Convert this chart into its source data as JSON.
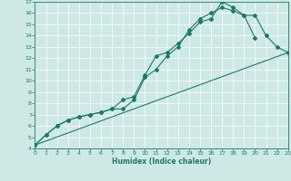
{
  "xlabel": "Humidex (Indice chaleur)",
  "bg_color": "#cde8e5",
  "line_color": "#1a7a6a",
  "grid_color": "#ffffff",
  "ylim": [
    4,
    17
  ],
  "xlim": [
    0,
    23
  ],
  "yticks": [
    4,
    5,
    6,
    7,
    8,
    9,
    10,
    11,
    12,
    13,
    14,
    15,
    16,
    17
  ],
  "xticks": [
    0,
    1,
    2,
    3,
    4,
    5,
    6,
    7,
    8,
    9,
    10,
    11,
    12,
    13,
    14,
    15,
    16,
    17,
    18,
    19,
    20,
    21,
    22,
    23
  ],
  "line1_x": [
    0,
    1,
    2,
    3,
    4,
    5,
    6,
    7,
    8,
    9,
    10,
    11,
    12,
    13,
    14,
    15,
    16,
    17,
    18,
    19,
    20
  ],
  "line1_y": [
    4.3,
    5.2,
    6.0,
    6.5,
    6.8,
    7.0,
    7.2,
    7.5,
    8.3,
    8.6,
    10.5,
    12.2,
    12.5,
    13.3,
    14.2,
    15.2,
    15.5,
    17.0,
    16.5,
    15.8,
    13.8
  ],
  "line2_x": [
    0,
    1,
    2,
    3,
    4,
    5,
    6,
    7,
    8,
    9,
    10,
    11,
    12,
    13,
    14,
    15,
    16,
    17,
    18,
    19,
    20,
    21,
    22,
    23
  ],
  "line2_y": [
    4.3,
    5.2,
    6.0,
    6.5,
    6.8,
    7.0,
    7.2,
    7.5,
    7.5,
    8.3,
    10.3,
    11.0,
    12.2,
    13.0,
    14.5,
    15.5,
    16.0,
    16.5,
    16.2,
    15.8,
    15.8,
    14.0,
    13.0,
    12.5
  ],
  "line3_x": [
    0,
    23
  ],
  "line3_y": [
    4.3,
    12.5
  ]
}
